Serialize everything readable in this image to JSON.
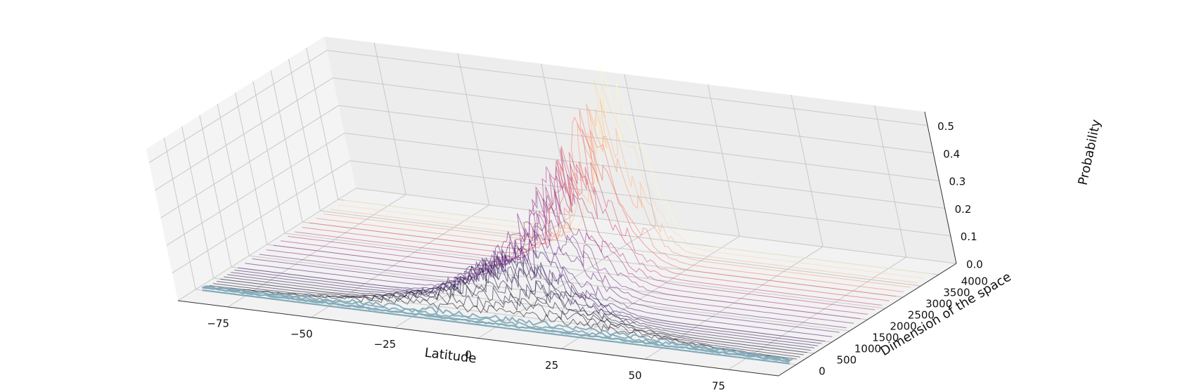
{
  "chart_data": {
    "type": "surface-3d-line-stack",
    "xlabel": "Latitude",
    "ylabel": "Dimension of the space",
    "zlabel": "Probability",
    "x_ticks": [
      "−75",
      "−50",
      "−25",
      "0",
      "25",
      "50",
      "75"
    ],
    "y_ticks": [
      "0",
      "500",
      "1000",
      "1500",
      "2000",
      "2500",
      "3000",
      "3500",
      "4000"
    ],
    "z_ticks": [
      "0.0",
      "0.1",
      "0.2",
      "0.3",
      "0.4",
      "0.5"
    ],
    "xlim": [
      -90,
      90
    ],
    "ylim": [
      -500,
      4500
    ],
    "zlim": [
      0,
      0.55
    ],
    "dimensions": [
      2,
      3,
      5,
      10,
      20,
      50,
      100,
      200,
      300,
      400,
      500,
      600,
      700,
      800,
      900,
      1000,
      1200,
      1400,
      1600,
      1800,
      2000,
      2200,
      2400,
      2600,
      2800,
      3000,
      3200,
      3400,
      3600,
      3800,
      4000
    ],
    "peak_probability": [
      0.0,
      0.0,
      0.01,
      0.01,
      0.02,
      0.03,
      0.05,
      0.07,
      0.09,
      0.11,
      0.12,
      0.14,
      0.15,
      0.16,
      0.17,
      0.18,
      0.2,
      0.22,
      0.24,
      0.26,
      0.28,
      0.3,
      0.32,
      0.34,
      0.36,
      0.38,
      0.4,
      0.42,
      0.44,
      0.46,
      0.48
    ],
    "colormap": "magma",
    "low_dimension_color": "#7fa8b8",
    "grid": true
  }
}
